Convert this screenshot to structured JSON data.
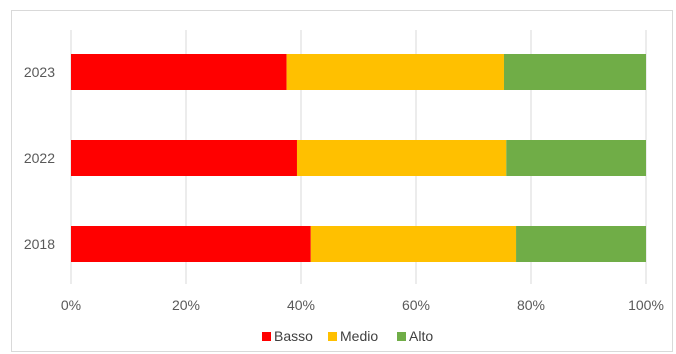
{
  "chart_data": {
    "type": "bar",
    "orientation": "horizontal",
    "stacked": true,
    "percent": true,
    "categories": [
      "2023",
      "2022",
      "2018"
    ],
    "series": [
      {
        "name": "Basso",
        "color": "#ff0000",
        "values": [
          37.5,
          39.3,
          41.7
        ]
      },
      {
        "name": "Medio",
        "color": "#ffc000",
        "values": [
          37.8,
          36.4,
          35.7
        ]
      },
      {
        "name": "Alto",
        "color": "#70ad47",
        "values": [
          24.7,
          24.3,
          22.6
        ]
      }
    ],
    "xlim": [
      0,
      100
    ],
    "x_ticks": [
      "0%",
      "20%",
      "40%",
      "60%",
      "80%",
      "100%"
    ],
    "grid": "vertical",
    "legend": "bottom",
    "title": "",
    "xlabel": "",
    "ylabel": ""
  }
}
